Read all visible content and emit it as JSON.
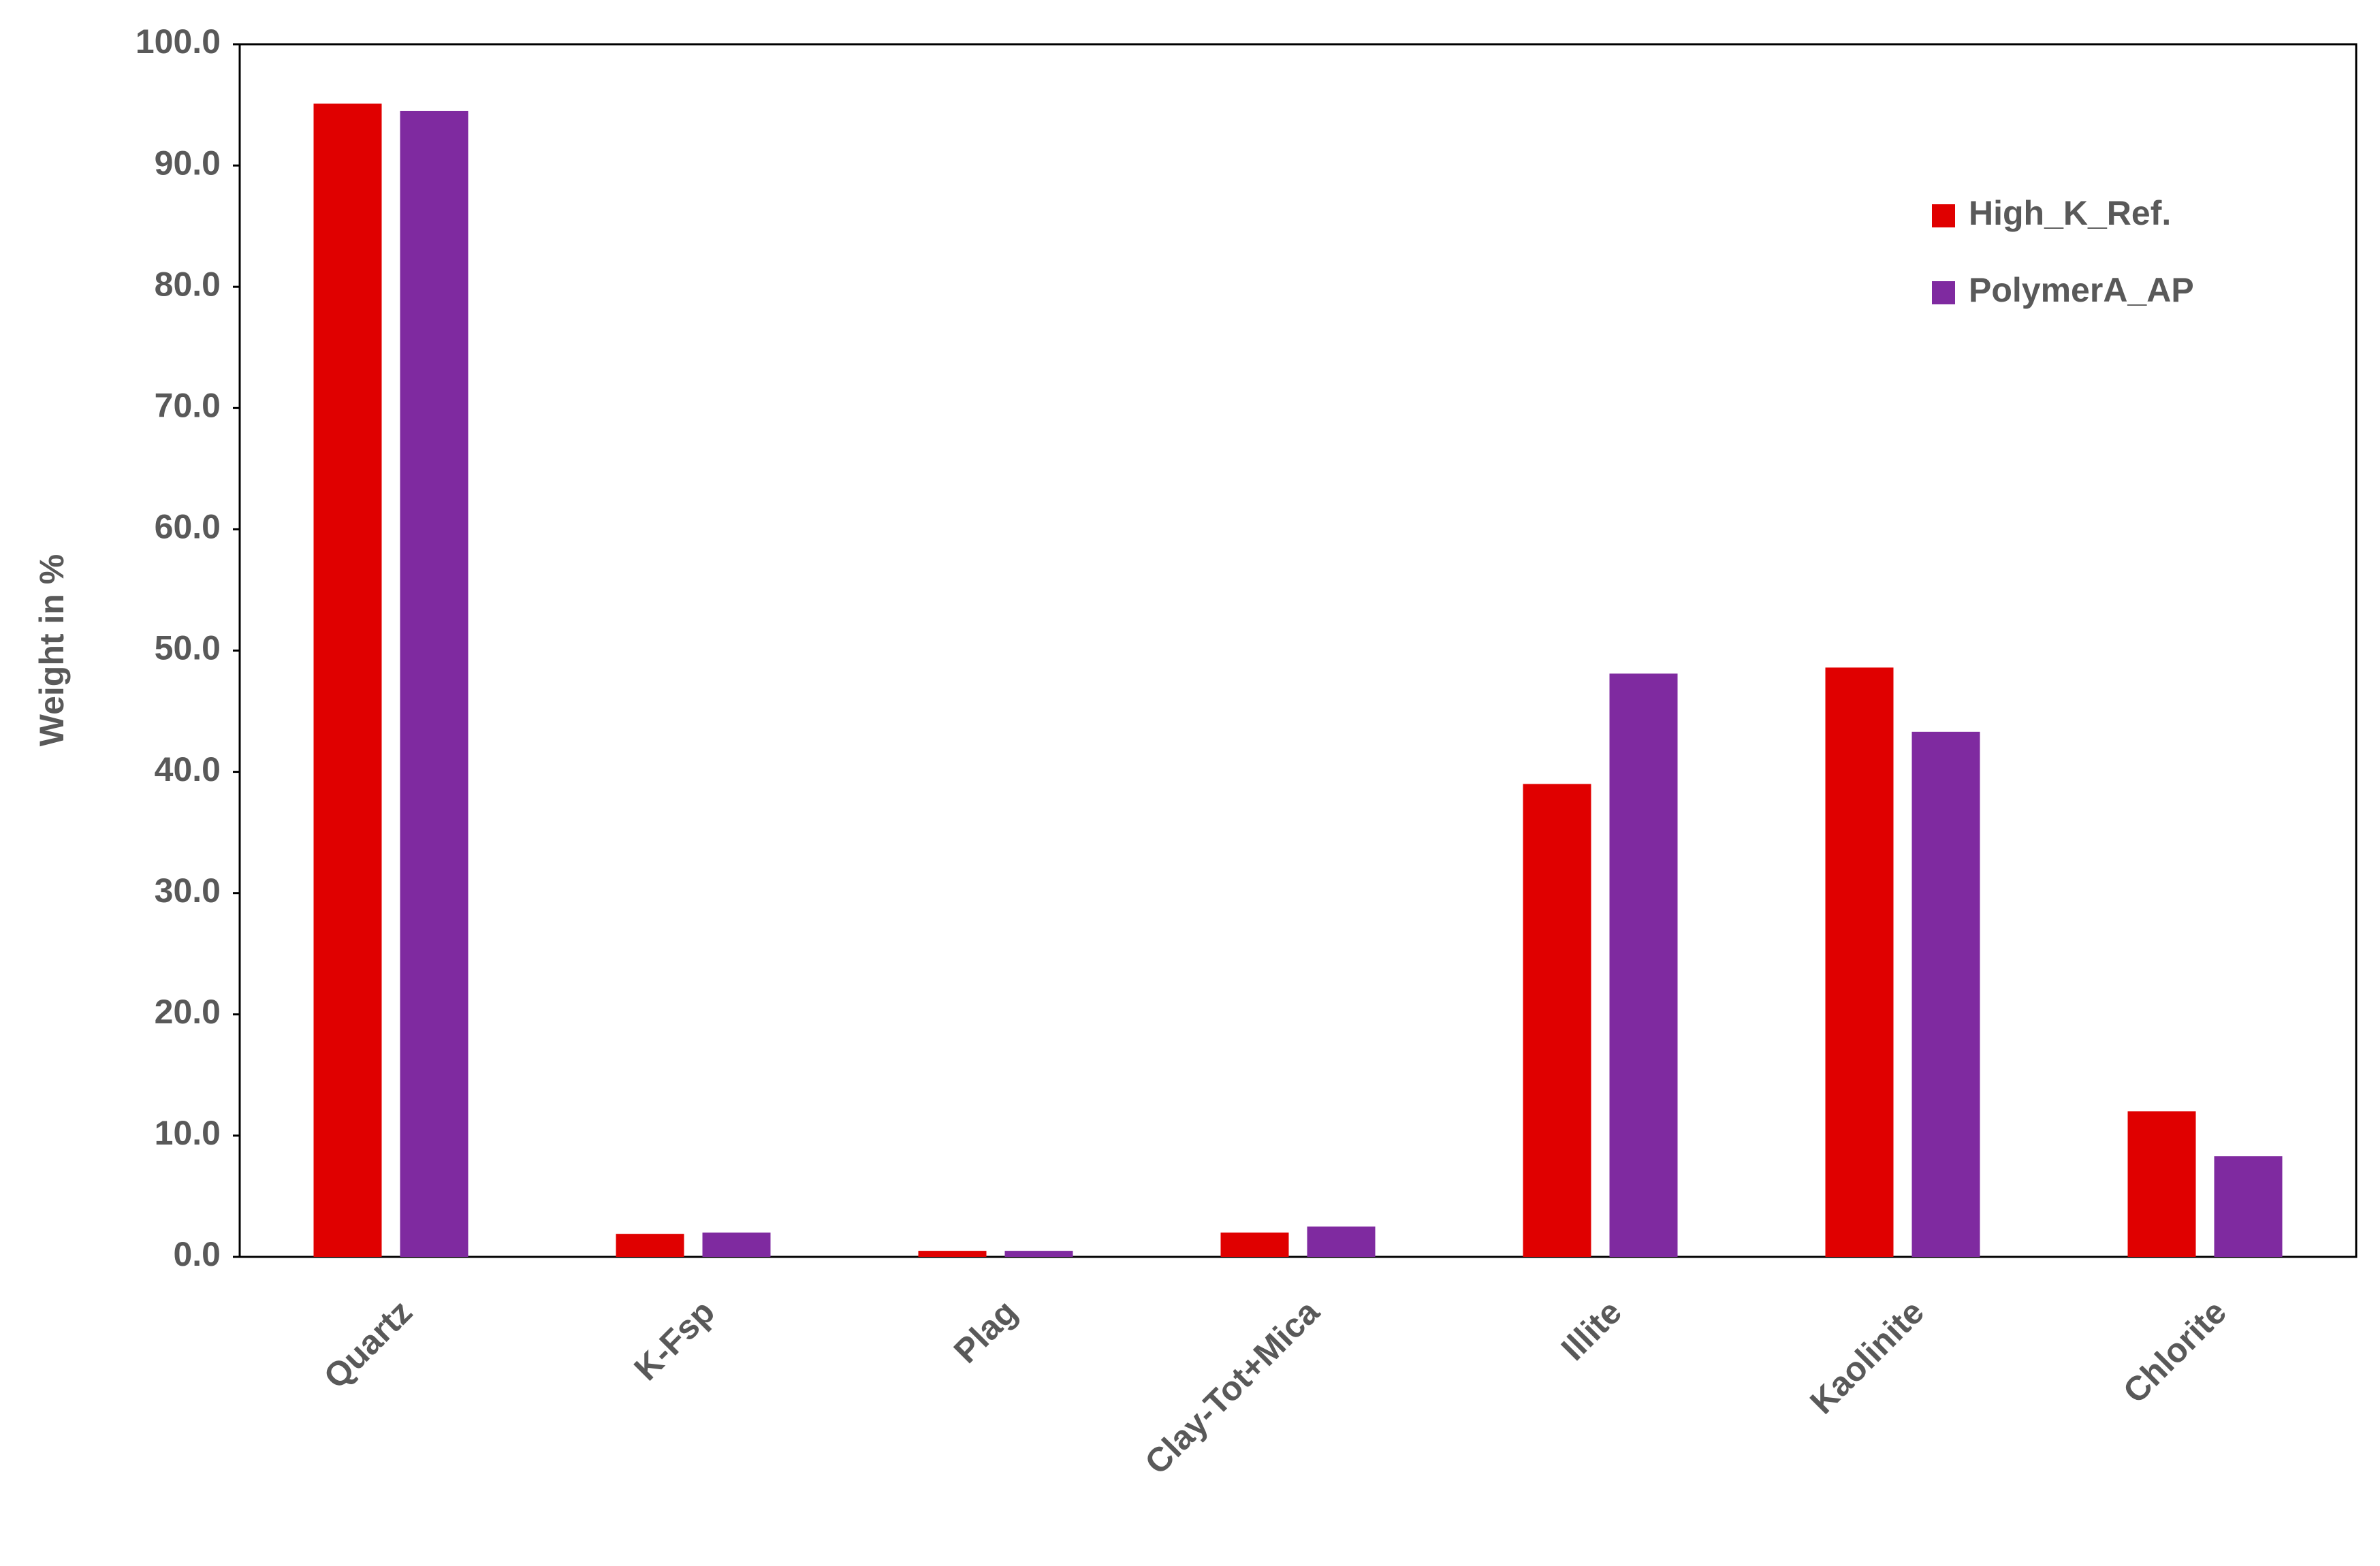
{
  "chart_data": {
    "type": "bar",
    "categories": [
      "Quartz",
      "K-Fsp",
      "Plag",
      "Clay-Tot+Mica",
      "Illite",
      "Kaolinite",
      "Chlorite"
    ],
    "series": [
      {
        "name": "High_K_Ref.",
        "color": "#e00000",
        "values": [
          95.1,
          1.9,
          0.5,
          2.0,
          39.0,
          48.6,
          12.0
        ]
      },
      {
        "name": "PolymerA_AP",
        "color": "#7f2aa0",
        "values": [
          94.5,
          2.0,
          0.5,
          2.5,
          48.1,
          43.3,
          8.3
        ]
      }
    ],
    "y_label": "Weight in  %",
    "ylim": [
      0,
      100
    ],
    "yticks": [
      {
        "value": 0,
        "label": "0.0"
      },
      {
        "value": 10,
        "label": "10.0"
      },
      {
        "value": 20,
        "label": "20.0"
      },
      {
        "value": 30,
        "label": "30.0"
      },
      {
        "value": 40,
        "label": "40.0"
      },
      {
        "value": 50,
        "label": "50.0"
      },
      {
        "value": 60,
        "label": "60.0"
      },
      {
        "value": 70,
        "label": "70.0"
      },
      {
        "value": 80,
        "label": "80.0"
      },
      {
        "value": 90,
        "label": "90.0"
      },
      {
        "value": 100,
        "label": "100.0"
      }
    ],
    "legend": "upper right"
  }
}
